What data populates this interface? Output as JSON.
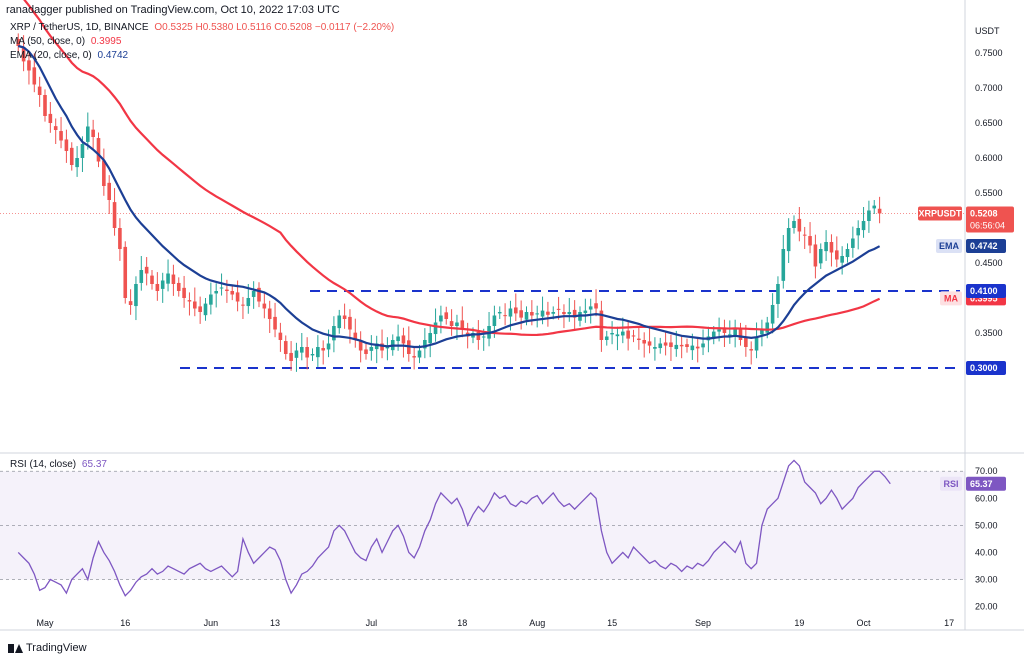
{
  "header": {
    "published": "ranadagger published on TradingView.com, Oct 10, 2022 17:03 UTC"
  },
  "legend": {
    "symbol": "XRP / TetherUS, 1D, BINANCE",
    "ohlc": "O0.5325  H0.5380  L0.5116  C0.5208  −0.0117 (−2.20%)",
    "ma": "MA (50, close, 0)",
    "ma_value": "0.3995",
    "ema": "EMA (20, close, 0)",
    "ema_value": "0.4742",
    "rsi": "RSI (14, close)",
    "rsi_value": "65.37"
  },
  "colors": {
    "up": "#26a69a",
    "down": "#ef5350",
    "ma": "#f23645",
    "ema": "#1c3f95",
    "rsi": "#7e57c2",
    "level": "#1a33cc",
    "price_tag": "#ef5350"
  },
  "logo": "TradingView",
  "chart_data": [
    {
      "type": "candlestick",
      "title": "XRP / TetherUS, 1D, BINANCE",
      "y_unit": "USDT",
      "ylim": [
        0.18,
        0.8
      ],
      "y_ticks": [
        "0.7500",
        "0.7000",
        "0.6500",
        "0.6000",
        "0.5500",
        "0.5000",
        "0.4500",
        "0.3500"
      ],
      "x_ticks": [
        {
          "label": "May",
          "day": 0
        },
        {
          "label": "16",
          "day": 15
        },
        {
          "label": "Jun",
          "day": 31
        },
        {
          "label": "13",
          "day": 43
        },
        {
          "label": "Jul",
          "day": 61
        },
        {
          "label": "18",
          "day": 78
        },
        {
          "label": "Aug",
          "day": 92
        },
        {
          "label": "15",
          "day": 106
        },
        {
          "label": "Sep",
          "day": 123
        },
        {
          "label": "19",
          "day": 141
        },
        {
          "label": "Oct",
          "day": 153
        },
        {
          "label": "17",
          "day": 169
        }
      ],
      "candles": {
        "start_day": -5,
        "close": [
          0.76,
          0.738,
          0.725,
          0.705,
          0.69,
          0.66,
          0.65,
          0.64,
          0.625,
          0.61,
          0.59,
          0.6,
          0.62,
          0.645,
          0.63,
          0.595,
          0.56,
          0.54,
          0.5,
          0.47,
          0.4,
          0.39,
          0.42,
          0.44,
          0.435,
          0.42,
          0.41,
          0.425,
          0.435,
          0.42,
          0.41,
          0.4,
          0.395,
          0.385,
          0.38,
          0.392,
          0.405,
          0.41,
          0.415,
          0.41,
          0.405,
          0.395,
          0.39,
          0.4,
          0.41,
          0.395,
          0.385,
          0.37,
          0.355,
          0.34,
          0.32,
          0.31,
          0.325,
          0.33,
          0.315,
          0.32,
          0.33,
          0.325,
          0.335,
          0.36,
          0.375,
          0.37,
          0.355,
          0.34,
          0.325,
          0.32,
          0.33,
          0.335,
          0.325,
          0.33,
          0.34,
          0.345,
          0.335,
          0.32,
          0.315,
          0.325,
          0.34,
          0.35,
          0.365,
          0.375,
          0.37,
          0.36,
          0.365,
          0.355,
          0.345,
          0.35,
          0.34,
          0.345,
          0.36,
          0.375,
          0.38,
          0.375,
          0.385,
          0.378,
          0.372,
          0.38,
          0.375,
          0.378,
          0.382,
          0.376,
          0.38,
          0.383,
          0.377,
          0.38,
          0.372,
          0.38,
          0.382,
          0.388,
          0.385,
          0.34,
          0.345,
          0.35,
          0.348,
          0.352,
          0.342,
          0.345,
          0.34,
          0.335,
          0.332,
          0.33,
          0.335,
          0.332,
          0.33,
          0.333,
          0.331,
          0.33,
          0.332,
          0.328,
          0.335,
          0.345,
          0.352,
          0.355,
          0.35,
          0.348,
          0.355,
          0.34,
          0.33,
          0.325,
          0.345,
          0.355,
          0.365,
          0.39,
          0.42,
          0.47,
          0.5,
          0.51,
          0.495,
          0.49,
          0.475,
          0.445,
          0.47,
          0.48,
          0.465,
          0.455,
          0.46,
          0.47,
          0.485,
          0.5,
          0.51,
          0.525,
          0.532,
          0.5208
        ]
      },
      "indicators": {
        "ema20": [
          0.76,
          0.758,
          0.752,
          0.742,
          0.73,
          0.715,
          0.7,
          0.685,
          0.672,
          0.66,
          0.645,
          0.633,
          0.623,
          0.618,
          0.612,
          0.605,
          0.597,
          0.585,
          0.57,
          0.555,
          0.54,
          0.526,
          0.515,
          0.506,
          0.498,
          0.49,
          0.482,
          0.474,
          0.467,
          0.46,
          0.453,
          0.447,
          0.442,
          0.437,
          0.432,
          0.428,
          0.425,
          0.423,
          0.421,
          0.419,
          0.418,
          0.417,
          0.416,
          0.414,
          0.412,
          0.41,
          0.408,
          0.404,
          0.399,
          0.393,
          0.385,
          0.378,
          0.371,
          0.365,
          0.36,
          0.355,
          0.352,
          0.349,
          0.347,
          0.345,
          0.345,
          0.344,
          0.343,
          0.341,
          0.339,
          0.336,
          0.334,
          0.333,
          0.332,
          0.331,
          0.332,
          0.332,
          0.332,
          0.331,
          0.33,
          0.33,
          0.331,
          0.333,
          0.335,
          0.338,
          0.341,
          0.343,
          0.345,
          0.346,
          0.347,
          0.348,
          0.348,
          0.349,
          0.35,
          0.352,
          0.355,
          0.358,
          0.361,
          0.363,
          0.365,
          0.367,
          0.368,
          0.369,
          0.37,
          0.371,
          0.372,
          0.373,
          0.374,
          0.374,
          0.374,
          0.375,
          0.375,
          0.376,
          0.377,
          0.376,
          0.374,
          0.372,
          0.37,
          0.369,
          0.367,
          0.365,
          0.363,
          0.36,
          0.358,
          0.356,
          0.354,
          0.352,
          0.35,
          0.348,
          0.346,
          0.345,
          0.344,
          0.343,
          0.342,
          0.342,
          0.343,
          0.344,
          0.345,
          0.345,
          0.346,
          0.345,
          0.344,
          0.343,
          0.344,
          0.346,
          0.348,
          0.352,
          0.358,
          0.367,
          0.378,
          0.39,
          0.399,
          0.407,
          0.414,
          0.42,
          0.426,
          0.432,
          0.436,
          0.44,
          0.444,
          0.448,
          0.452,
          0.457,
          0.462,
          0.467,
          0.47,
          0.474
        ]
      }
    },
    {
      "type": "line",
      "title": "RSI (14, close)",
      "ylim": [
        18,
        76
      ],
      "y_ticks": [
        70,
        60,
        50,
        40,
        30,
        20
      ],
      "bands": [
        30,
        70
      ],
      "series": [
        {
          "name": "RSI (14, close)",
          "values": [
            40,
            38,
            36,
            32,
            26,
            27,
            30,
            29,
            28,
            25,
            30,
            32,
            34,
            30,
            38,
            44,
            40,
            37,
            33,
            28,
            24,
            26,
            29,
            31,
            32,
            34,
            32,
            33,
            35,
            34,
            33,
            32,
            34,
            35,
            36,
            34,
            33,
            34,
            35,
            33,
            31,
            33,
            45,
            40,
            36,
            38,
            40,
            42,
            41,
            37,
            30,
            25,
            28,
            32,
            33,
            35,
            38,
            40,
            42,
            48,
            50,
            48,
            44,
            40,
            38,
            37,
            42,
            45,
            40,
            44,
            48,
            50,
            46,
            40,
            38,
            42,
            48,
            52,
            58,
            62,
            60,
            58,
            60,
            56,
            50,
            54,
            57,
            55,
            58,
            62,
            60,
            61,
            58,
            57,
            59,
            58,
            60,
            61,
            58,
            60,
            62,
            59,
            57,
            58,
            56,
            58,
            60,
            62,
            60,
            48,
            40,
            36,
            38,
            40,
            38,
            42,
            40,
            38,
            36,
            37,
            35,
            34,
            36,
            35,
            33,
            35,
            34,
            36,
            35,
            37,
            40,
            42,
            44,
            42,
            40,
            44,
            36,
            34,
            36,
            50,
            56,
            58,
            60,
            66,
            72,
            74,
            72,
            66,
            64,
            62,
            58,
            60,
            63,
            60,
            56,
            58,
            60,
            64,
            66,
            68,
            70,
            70,
            68,
            65.37
          ],
          "start_day": -5
        }
      ]
    }
  ],
  "levels": [
    {
      "value": 0.41,
      "label": "0.4100"
    },
    {
      "value": 0.3,
      "label": "0.3000"
    }
  ],
  "tags": {
    "price": {
      "label": "XRPUSDT",
      "value": "0.5208",
      "time": "06:56:04"
    },
    "ema": {
      "label": "EMA",
      "value": "0.4742"
    },
    "ma": {
      "label": "MA",
      "value": "0.3995"
    },
    "rsi": {
      "label": "RSI",
      "value": "65.37"
    }
  }
}
